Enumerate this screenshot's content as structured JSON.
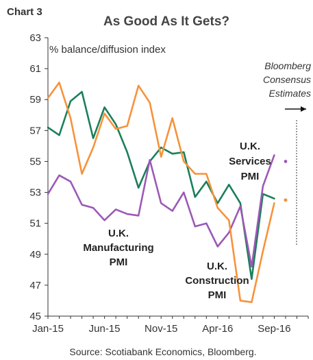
{
  "chart_data": {
    "type": "line",
    "chart_number": "Chart 3",
    "title": "As Good As It Gets?",
    "ylabel": "% balance/diffusion index",
    "ylim": [
      45,
      63
    ],
    "yticks": [
      "45",
      "47",
      "49",
      "51",
      "53",
      "55",
      "57",
      "59",
      "61",
      "63"
    ],
    "xlim": [
      "2015-01",
      "2016-12"
    ],
    "xticks": [
      {
        "label": "Jan-15",
        "x": "2015-01"
      },
      {
        "label": "Jun-15",
        "x": "2015-06"
      },
      {
        "label": "Nov-15",
        "x": "2015-11"
      },
      {
        "label": "Apr-16",
        "x": "2016-04"
      },
      {
        "label": "Sep-16",
        "x": "2016-09"
      }
    ],
    "grid": false,
    "x": [
      "2015-01",
      "2015-02",
      "2015-03",
      "2015-04",
      "2015-05",
      "2015-06",
      "2015-07",
      "2015-08",
      "2015-09",
      "2015-10",
      "2015-11",
      "2015-12",
      "2016-01",
      "2016-02",
      "2016-03",
      "2016-04",
      "2016-05",
      "2016-06",
      "2016-07",
      "2016-08",
      "2016-09",
      "2016-10"
    ],
    "series": [
      {
        "name": "U.K. Services PMI",
        "label_lines": [
          "U.K.",
          "Services",
          "PMI"
        ],
        "color": "#1b7f5a",
        "values": [
          57.2,
          56.7,
          58.9,
          59.5,
          56.5,
          58.5,
          57.4,
          55.6,
          53.3,
          55.0,
          55.9,
          55.5,
          55.6,
          52.7,
          53.7,
          52.3,
          53.5,
          52.3,
          47.4,
          52.9,
          52.6,
          null
        ],
        "estimate": 52.5
      },
      {
        "name": "U.K. Manufacturing PMI",
        "label_lines": [
          "U.K.",
          "Manufacturing",
          "PMI"
        ],
        "color": "#9b59b6",
        "values": [
          52.9,
          54.1,
          53.7,
          52.2,
          52.0,
          51.2,
          51.9,
          51.6,
          51.5,
          55.1,
          52.3,
          51.8,
          53.0,
          50.8,
          51.0,
          49.5,
          50.4,
          52.1,
          48.2,
          53.4,
          55.4,
          null
        ],
        "estimate": 55.0
      },
      {
        "name": "U.K. Construction PMI",
        "label_lines": [
          "U.K.",
          "Construction",
          "PMI"
        ],
        "color": "#f7923a",
        "values": [
          59.1,
          60.1,
          57.8,
          54.2,
          55.9,
          58.1,
          57.1,
          57.3,
          59.9,
          58.8,
          55.3,
          57.8,
          55.0,
          54.2,
          54.2,
          52.0,
          51.2,
          46.0,
          45.9,
          49.2,
          52.3,
          null
        ],
        "estimate": 52.5
      }
    ],
    "estimate_note": [
      "Bloomberg",
      "Consensus",
      "Estimates"
    ],
    "source": "Source: Scotiabank Economics, Bloomberg."
  },
  "colors": {
    "services": "#1b7f5a",
    "manufacturing": "#9b59b6",
    "construction": "#f7923a",
    "axis": "#333333"
  }
}
